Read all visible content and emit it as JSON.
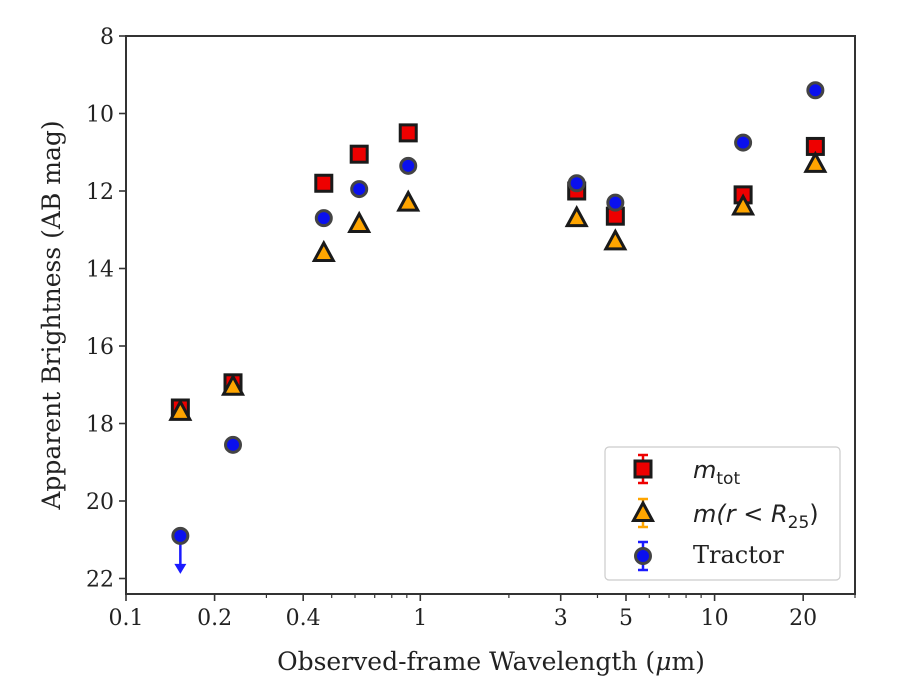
{
  "chart_data": {
    "type": "scatter",
    "xlabel_prefix": "Observed-frame Wavelength (",
    "xlabel_mu": "μ",
    "xlabel_suffix": "m)",
    "ylabel": "Apparent Brightness (AB mag)",
    "x_scale": "log",
    "xlim": [
      0.1,
      30
    ],
    "ylim": [
      22.4,
      8
    ],
    "y_inverted": true,
    "grid": false,
    "legend_position": "bottom-right",
    "x_ticks": [
      {
        "value": 0.1,
        "label": "0.1"
      },
      {
        "value": 0.2,
        "label": "0.2"
      },
      {
        "value": 0.4,
        "label": "0.4"
      },
      {
        "value": 1,
        "label": "1"
      },
      {
        "value": 3,
        "label": "3"
      },
      {
        "value": 5,
        "label": "5"
      },
      {
        "value": 10,
        "label": "10"
      },
      {
        "value": 20,
        "label": "20"
      }
    ],
    "y_ticks": [
      {
        "value": 8,
        "label": "8"
      },
      {
        "value": 10,
        "label": "10"
      },
      {
        "value": 12,
        "label": "12"
      },
      {
        "value": 14,
        "label": "14"
      },
      {
        "value": 16,
        "label": "16"
      },
      {
        "value": 18,
        "label": "18"
      },
      {
        "value": 20,
        "label": "20"
      },
      {
        "value": 22,
        "label": "22"
      }
    ],
    "series": [
      {
        "name": "m_tot",
        "legend_symbol": "m",
        "legend_sub": "tot",
        "marker": "square",
        "face_color": "#ee0000",
        "edge_color": "#1a1a1a",
        "error_color": "#ee0000",
        "points": [
          {
            "x": 0.153,
            "y": 17.6
          },
          {
            "x": 0.231,
            "y": 16.95
          },
          {
            "x": 0.47,
            "y": 11.8
          },
          {
            "x": 0.62,
            "y": 11.05
          },
          {
            "x": 0.91,
            "y": 10.5
          },
          {
            "x": 3.4,
            "y": 12.0
          },
          {
            "x": 4.6,
            "y": 12.65
          },
          {
            "x": 12.5,
            "y": 12.1
          },
          {
            "x": 22.0,
            "y": 10.85
          }
        ]
      },
      {
        "name": "m(r<R25)",
        "legend_symbol": "m(r < R",
        "legend_sub": "25",
        "legend_close": ")",
        "marker": "triangle",
        "face_color": "#ffa500",
        "edge_color": "#1a1a1a",
        "error_color": "#ffa500",
        "points": [
          {
            "x": 0.153,
            "y": 17.7
          },
          {
            "x": 0.231,
            "y": 17.05
          },
          {
            "x": 0.47,
            "y": 13.6
          },
          {
            "x": 0.62,
            "y": 12.85
          },
          {
            "x": 0.91,
            "y": 12.3
          },
          {
            "x": 3.4,
            "y": 12.7
          },
          {
            "x": 4.6,
            "y": 13.3
          },
          {
            "x": 12.5,
            "y": 12.4
          },
          {
            "x": 22.0,
            "y": 11.3
          }
        ]
      },
      {
        "name": "Tractor",
        "legend_label": "Tractor",
        "marker": "circle",
        "face_color": "#0a10ee",
        "edge_color": "#444444",
        "error_color": "#1a1aff",
        "points": [
          {
            "x": 0.153,
            "y": 20.9,
            "upper_limit": true
          },
          {
            "x": 0.231,
            "y": 18.55
          },
          {
            "x": 0.47,
            "y": 12.7
          },
          {
            "x": 0.62,
            "y": 11.95
          },
          {
            "x": 0.91,
            "y": 11.35
          },
          {
            "x": 3.4,
            "y": 11.8
          },
          {
            "x": 4.6,
            "y": 12.3
          },
          {
            "x": 12.5,
            "y": 10.75
          },
          {
            "x": 22.0,
            "y": 9.4
          }
        ]
      }
    ]
  }
}
